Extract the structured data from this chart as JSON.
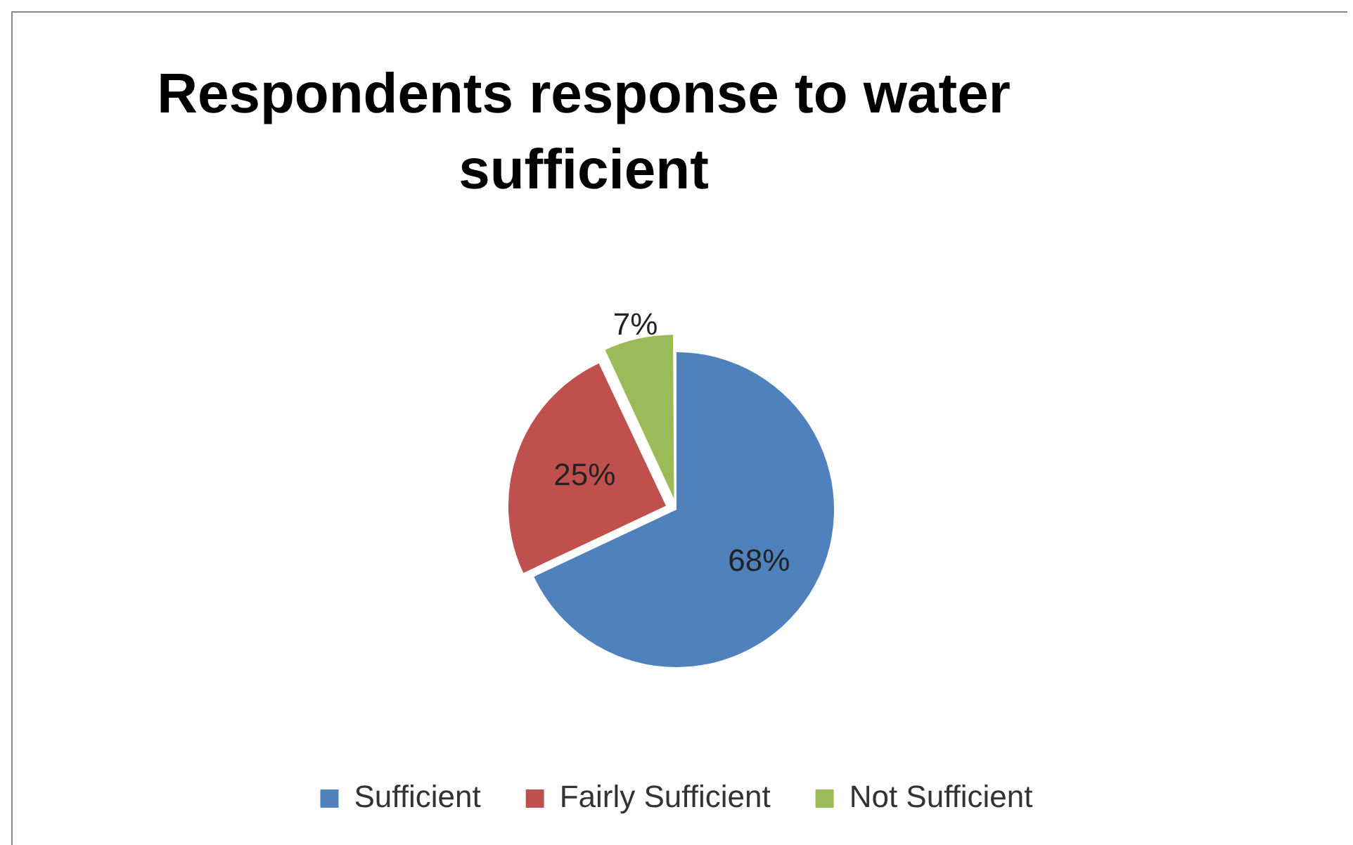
{
  "chart_data": {
    "type": "pie",
    "title": "Respondents response to water sufficient",
    "categories": [
      "Sufficient",
      "Fairly Sufficient",
      "Not Sufficient"
    ],
    "values": [
      68,
      25,
      7
    ],
    "colors": [
      "#4f81bd",
      "#c0504d",
      "#9bbb59"
    ],
    "value_labels": [
      "68%",
      "25%",
      "7%"
    ],
    "legend": "bottom"
  }
}
